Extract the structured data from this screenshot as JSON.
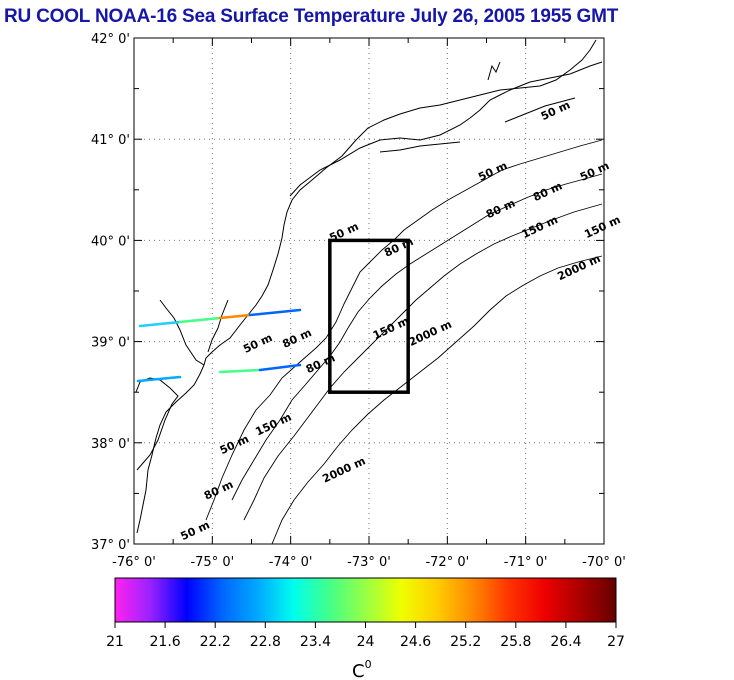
{
  "title": "RU COOL  NOAA-16 Sea Surface Temperature July 26, 2005 1955 GMT",
  "map": {
    "lat_labels": [
      "42° 0'",
      "41° 0'",
      "40° 0'",
      "39° 0'",
      "38° 0'",
      "37° 0'"
    ],
    "lon_labels": [
      "-76° 0'",
      "-75° 0'",
      "-74° 0'",
      "-73° 0'",
      "-72° 0'",
      "-71° 0'",
      "-70° 0'"
    ],
    "lat_range": [
      37,
      42
    ],
    "lon_range": [
      -76,
      -70
    ],
    "study_box": {
      "lon": [
        -73.5,
        -72.5
      ],
      "lat": [
        38.5,
        40.0
      ]
    },
    "isobath_labels": [
      {
        "text": "50 m",
        "lon": -70.6,
        "lat": 41.25
      },
      {
        "text": "50 m",
        "lon": -71.4,
        "lat": 40.65
      },
      {
        "text": "50 m",
        "lon": -70.1,
        "lat": 40.65
      },
      {
        "text": "80 m",
        "lon": -70.7,
        "lat": 40.45
      },
      {
        "text": "80 m",
        "lon": -71.3,
        "lat": 40.28
      },
      {
        "text": "50 m",
        "lon": -73.3,
        "lat": 40.05
      },
      {
        "text": "80 m",
        "lon": -72.6,
        "lat": 39.9
      },
      {
        "text": "150 m",
        "lon": -70.0,
        "lat": 40.1
      },
      {
        "text": "150 m",
        "lon": -70.8,
        "lat": 40.1
      },
      {
        "text": "2000 m",
        "lon": -70.3,
        "lat": 39.7
      },
      {
        "text": "150 m",
        "lon": -72.7,
        "lat": 39.1
      },
      {
        "text": "2000 m",
        "lon": -72.2,
        "lat": 39.05
      },
      {
        "text": "50 m",
        "lon": -74.4,
        "lat": 38.95
      },
      {
        "text": "80 m",
        "lon": -73.9,
        "lat": 39.0
      },
      {
        "text": "80 m",
        "lon": -73.6,
        "lat": 38.75
      },
      {
        "text": "150 m",
        "lon": -74.2,
        "lat": 38.15
      },
      {
        "text": "50 m",
        "lon": -74.7,
        "lat": 37.95
      },
      {
        "text": "2000 m",
        "lon": -73.3,
        "lat": 37.7
      },
      {
        "text": "80 m",
        "lon": -74.9,
        "lat": 37.5
      },
      {
        "text": "50 m",
        "lon": -75.2,
        "lat": 37.1
      }
    ]
  },
  "colorbar": {
    "ticks": [
      "21",
      "21.6",
      "22.2",
      "22.8",
      "23.4",
      "24",
      "24.6",
      "25.2",
      "25.8",
      "26.4",
      "27"
    ],
    "range": [
      21,
      27
    ],
    "unit": "C",
    "unit_superscript": "0",
    "colors": [
      "#ff22ee",
      "#9922ff",
      "#0000ff",
      "#0066ff",
      "#00aaff",
      "#00ffee",
      "#44ff88",
      "#99ff44",
      "#eeff00",
      "#ffcc00",
      "#ff8800",
      "#ff3300",
      "#ee0000",
      "#aa0000",
      "#660000"
    ]
  }
}
